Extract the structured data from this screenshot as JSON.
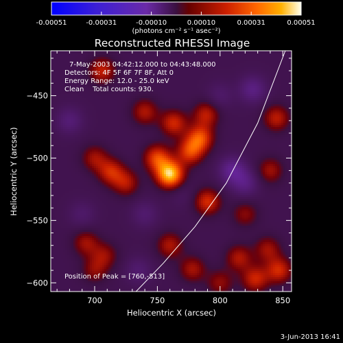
{
  "chart_data": {
    "type": "heatmap",
    "title": "Reconstructed RHESSI Image",
    "xlabel": "Heliocentric X (arcsec)",
    "ylabel": "Heliocentric Y (arcsec)",
    "xlim": [
      665,
      857
    ],
    "ylim": [
      -607,
      -414
    ],
    "xticks": [
      700,
      750,
      800,
      850
    ],
    "yticks": [
      -450,
      -500,
      -550,
      -600
    ],
    "colorbar": {
      "label": "(photons cm⁻² s⁻¹ asec⁻²)",
      "min": -0.00051,
      "max": 0.00051,
      "ticks": [
        "-0.00051",
        "-0.00031",
        "-0.00010",
        "0.00010",
        "0.00031",
        "0.00051"
      ]
    },
    "annotations": [
      "7-May-2003 04:42:12.000 to 04:43:48.000",
      "Detectors: 4F 5F 6F 7F 8F, Att 0",
      "Energy Range: 12.0 - 25.0 keV",
      "Clean    Total counts: 930.",
      "Position of Peak = [760,-513]"
    ],
    "timestamp": "3-Jun-2013 16:41",
    "peak": {
      "x": 760,
      "y": -513
    },
    "sources": [
      {
        "x": 760,
        "y": -513,
        "v": 0.00051
      },
      {
        "x": 750,
        "y": -500,
        "v": 0.0003
      },
      {
        "x": 776,
        "y": -495,
        "v": 0.00028
      },
      {
        "x": 784,
        "y": -484,
        "v": 0.00031
      },
      {
        "x": 763,
        "y": -472,
        "v": 0.00025
      },
      {
        "x": 740,
        "y": -463,
        "v": 0.0002
      },
      {
        "x": 789,
        "y": -465,
        "v": 0.00022
      },
      {
        "x": 790,
        "y": -535,
        "v": 0.00026
      },
      {
        "x": 725,
        "y": -520,
        "v": 0.0002
      },
      {
        "x": 713,
        "y": -511,
        "v": 0.00024
      },
      {
        "x": 700,
        "y": -500,
        "v": 0.00018
      },
      {
        "x": 706,
        "y": -430,
        "v": 0.00023
      },
      {
        "x": 700,
        "y": -590,
        "v": 0.00015
      },
      {
        "x": 693,
        "y": -568,
        "v": 0.00018
      },
      {
        "x": 708,
        "y": -578,
        "v": 0.00016
      },
      {
        "x": 760,
        "y": -570,
        "v": 0.0002
      },
      {
        "x": 778,
        "y": -589,
        "v": 0.00019
      },
      {
        "x": 800,
        "y": -600,
        "v": 0.00016
      },
      {
        "x": 828,
        "y": -597,
        "v": 0.00024
      },
      {
        "x": 847,
        "y": -590,
        "v": 0.00025
      },
      {
        "x": 838,
        "y": -573,
        "v": 0.00018
      },
      {
        "x": 815,
        "y": -580,
        "v": 0.0002
      },
      {
        "x": 845,
        "y": -468,
        "v": 0.00022
      },
      {
        "x": 840,
        "y": -510,
        "v": 0.00018
      },
      {
        "x": 820,
        "y": -545,
        "v": 0.00015
      },
      {
        "x": 740,
        "y": -545,
        "v": -0.00012
      },
      {
        "x": 770,
        "y": -530,
        "v": -5e-05
      },
      {
        "x": 810,
        "y": -510,
        "v": -0.00025
      },
      {
        "x": 826,
        "y": -445,
        "v": -0.0002
      },
      {
        "x": 680,
        "y": -470,
        "v": -0.00015
      },
      {
        "x": 690,
        "y": -545,
        "v": -0.0001
      },
      {
        "x": 735,
        "y": -590,
        "v": -0.00012
      },
      {
        "x": 820,
        "y": -520,
        "v": -0.00018
      },
      {
        "x": 800,
        "y": -450,
        "v": -0.0001
      }
    ],
    "limb_curve": [
      {
        "x": 852,
        "y": -414
      },
      {
        "x": 830,
        "y": -472
      },
      {
        "x": 805,
        "y": -520
      },
      {
        "x": 780,
        "y": -555
      },
      {
        "x": 755,
        "y": -584
      },
      {
        "x": 733,
        "y": -607
      }
    ]
  }
}
